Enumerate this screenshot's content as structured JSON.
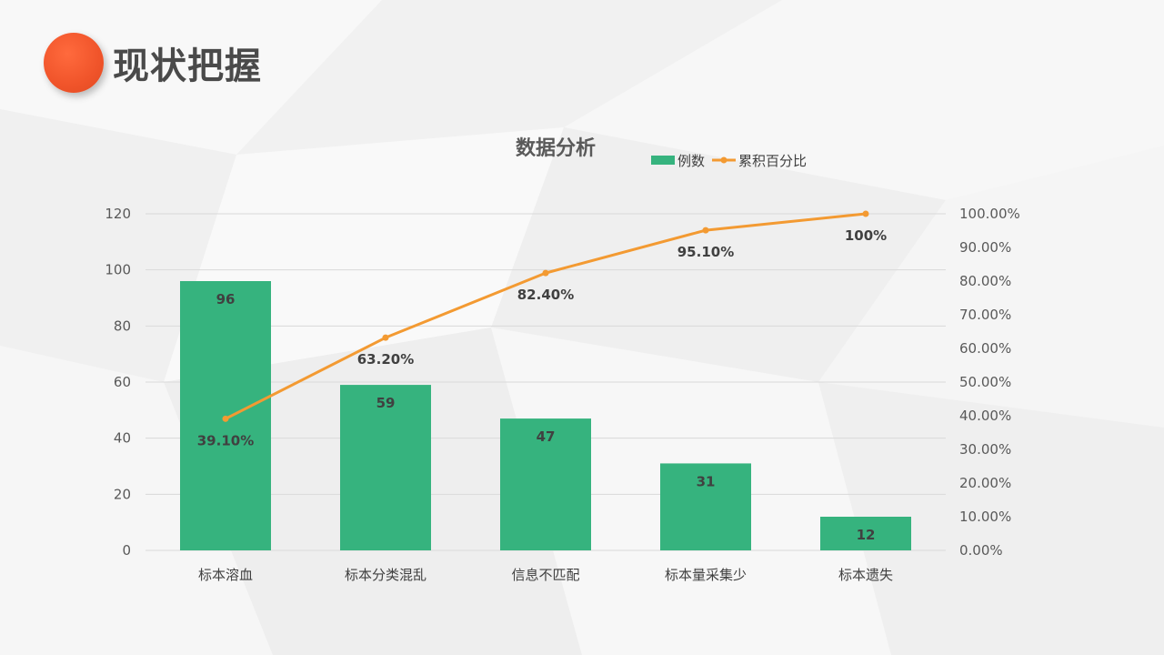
{
  "slide": {
    "title": "现状把握"
  },
  "colors": {
    "accent": "#f0542a",
    "bar": "#36b37e",
    "line": "#f39a32",
    "grid": "#d9d9d9",
    "title_text": "#4a4a4a"
  },
  "chart_data": {
    "type": "bar",
    "title": "数据分析",
    "categories": [
      "标本溶血",
      "标本分类混乱",
      "信息不匹配",
      "标本量采集少",
      "标本遗失"
    ],
    "series": [
      {
        "name": "例数",
        "type": "bar",
        "axis": "left",
        "values": [
          96,
          59,
          47,
          31,
          12
        ],
        "labels": [
          "96",
          "59",
          "47",
          "31",
          "12"
        ]
      },
      {
        "name": "累积百分比",
        "type": "line",
        "axis": "right",
        "values": [
          39.1,
          63.2,
          82.4,
          95.1,
          100
        ],
        "labels": [
          "39.10%",
          "63.20%",
          "82.40%",
          "95.10%",
          "100%"
        ]
      }
    ],
    "y_left": {
      "min": 0,
      "max": 120,
      "ticks": [
        "0",
        "20",
        "40",
        "60",
        "80",
        "100",
        "120"
      ]
    },
    "y_right": {
      "min": 0,
      "max": 100,
      "ticks": [
        "0.00%",
        "10.00%",
        "20.00%",
        "30.00%",
        "40.00%",
        "50.00%",
        "60.00%",
        "70.00%",
        "80.00%",
        "90.00%",
        "100.00%"
      ]
    },
    "grid": true,
    "legend_position": "top"
  }
}
